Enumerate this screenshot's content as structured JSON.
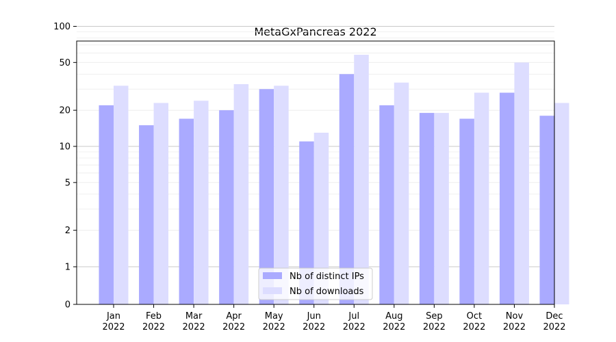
{
  "chart_data": {
    "type": "bar",
    "title": "MetaGxPancreas 2022",
    "xlabel": "",
    "ylabel": "",
    "yscale": "symlog",
    "y_ticks": [
      0,
      1,
      2,
      5,
      10,
      20,
      50,
      100
    ],
    "ylim": [
      0,
      120
    ],
    "grid": true,
    "legend_position": "lower-center",
    "categories": [
      [
        "Jan",
        "2022"
      ],
      [
        "Feb",
        "2022"
      ],
      [
        "Mar",
        "2022"
      ],
      [
        "Apr",
        "2022"
      ],
      [
        "May",
        "2022"
      ],
      [
        "Jun",
        "2022"
      ],
      [
        "Jul",
        "2022"
      ],
      [
        "Aug",
        "2022"
      ],
      [
        "Sep",
        "2022"
      ],
      [
        "Oct",
        "2022"
      ],
      [
        "Nov",
        "2022"
      ],
      [
        "Dec",
        "2022"
      ]
    ],
    "series": [
      {
        "name": "Nb of distinct IPs",
        "color": "#aaaaff",
        "values": [
          22,
          15,
          17,
          20,
          30,
          11,
          40,
          22,
          19,
          17,
          28,
          18
        ]
      },
      {
        "name": "Nb of downloads",
        "color": "#ddddff",
        "values": [
          32,
          23,
          24,
          33,
          32,
          13,
          58,
          34,
          19,
          28,
          50,
          23
        ]
      }
    ]
  }
}
